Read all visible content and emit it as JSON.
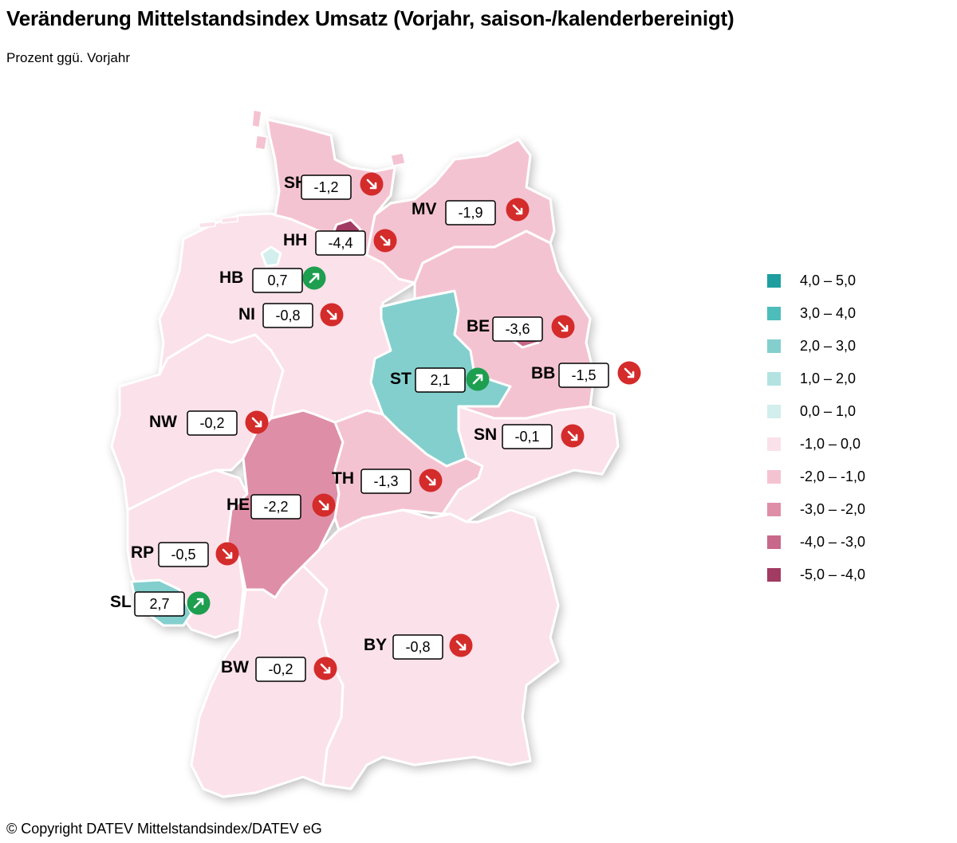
{
  "header": {
    "title": "Veränderung Mittelstandsindex Umsatz (Vorjahr, saison-/kalenderbereinigt)",
    "subtitle": "Prozent ggü. Vorjahr"
  },
  "footer": {
    "copyright": "© Copyright DATEV Mittelstandsindex/DATEV eG"
  },
  "colors": {
    "up_arrow": "#1e9e4f",
    "down_arrow": "#d42b2b",
    "border": "#ffffff"
  },
  "legend": [
    {
      "label": "4,0 – 5,0",
      "color": "#1e9e9e"
    },
    {
      "label": "3,0 – 4,0",
      "color": "#4dbdbb"
    },
    {
      "label": "2,0 – 3,0",
      "color": "#83cfcd"
    },
    {
      "label": "1,0 – 2,0",
      "color": "#b2e3e1"
    },
    {
      "label": "0,0 – 1,0",
      "color": "#d2eeed"
    },
    {
      "label": "-1,0 – 0,0",
      "color": "#fbe1ea"
    },
    {
      "label": "-2,0 – -1,0",
      "color": "#f4c3d1"
    },
    {
      "label": "-3,0 – -2,0",
      "color": "#de8fa7"
    },
    {
      "label": "-4,0 – -3,0",
      "color": "#c8688a"
    },
    {
      "label": "-5,0 – -4,0",
      "color": "#a13b62"
    }
  ],
  "states": [
    {
      "code": "SH",
      "value": "-1,2",
      "trend": "down",
      "color": "#f4c3d1"
    },
    {
      "code": "MV",
      "value": "-1,9",
      "trend": "down",
      "color": "#f4c3d1"
    },
    {
      "code": "HH",
      "value": "-4,4",
      "trend": "down",
      "color": "#a13b62"
    },
    {
      "code": "HB",
      "value": "0,7",
      "trend": "up",
      "color": "#d2eeed"
    },
    {
      "code": "NI",
      "value": "-0,8",
      "trend": "down",
      "color": "#fbe1ea"
    },
    {
      "code": "BE",
      "value": "-3,6",
      "trend": "down",
      "color": "#c8688a"
    },
    {
      "code": "ST",
      "value": "2,1",
      "trend": "up",
      "color": "#83cfcd"
    },
    {
      "code": "BB",
      "value": "-1,5",
      "trend": "down",
      "color": "#f4c3d1"
    },
    {
      "code": "NW",
      "value": "-0,2",
      "trend": "down",
      "color": "#fbe1ea"
    },
    {
      "code": "SN",
      "value": "-0,1",
      "trend": "down",
      "color": "#fbe1ea"
    },
    {
      "code": "TH",
      "value": "-1,3",
      "trend": "down",
      "color": "#f4c3d1"
    },
    {
      "code": "HE",
      "value": "-2,2",
      "trend": "down",
      "color": "#de8fa7"
    },
    {
      "code": "RP",
      "value": "-0,5",
      "trend": "down",
      "color": "#fbe1ea"
    },
    {
      "code": "SL",
      "value": "2,7",
      "trend": "up",
      "color": "#83cfcd"
    },
    {
      "code": "BY",
      "value": "-0,8",
      "trend": "down",
      "color": "#fbe1ea"
    },
    {
      "code": "BW",
      "value": "-0,2",
      "trend": "down",
      "color": "#fbe1ea"
    }
  ]
}
